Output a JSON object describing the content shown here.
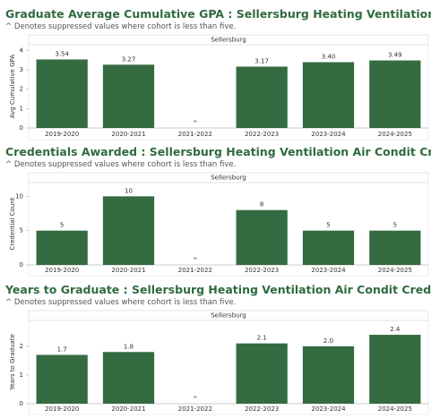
{
  "chart_data": [
    {
      "type": "bar",
      "title": "Graduate Average Cumulative GPA : Sellersburg Heating Ventilation Air Condit Credentials",
      "subtitle": "^ Denotes suppressed values where cohort is less than five.",
      "panel": "Sellersburg",
      "ylabel": "Avg Cumulative GPA",
      "categories": [
        "2019-2020",
        "2020-2021",
        "2021-2022",
        "2022-2023",
        "2023-2024",
        "2024-2025"
      ],
      "values": [
        3.54,
        3.27,
        null,
        3.17,
        3.4,
        3.49
      ],
      "value_labels": [
        "3.54",
        "3.27",
        "^",
        "3.17",
        "3.40",
        "3.49"
      ],
      "color": "#356b41",
      "ylim": [
        0,
        4.3
      ],
      "yticks": [
        0,
        1,
        2,
        3,
        4
      ]
    },
    {
      "type": "bar",
      "title": "Credentials Awarded : Sellersburg Heating Ventilation Air Condit Credentials",
      "subtitle": "^ Denotes suppressed values where cohort is less than five.",
      "panel": "Sellersburg",
      "ylabel": "Credential Count",
      "categories": [
        "2019-2020",
        "2020-2021",
        "2021-2022",
        "2022-2023",
        "2023-2024",
        "2024-2025"
      ],
      "values": [
        5,
        10,
        null,
        8,
        5,
        5
      ],
      "value_labels": [
        "5",
        "10",
        "^",
        "8",
        "5",
        "5"
      ],
      "color": "#356b41",
      "ylim": [
        0,
        12
      ],
      "yticks": [
        0,
        5,
        10
      ]
    },
    {
      "type": "bar",
      "title": "Years to Graduate : Sellersburg Heating Ventilation Air Condit Credentials",
      "subtitle": "^ Denotes suppressed values where cohort is less than five.",
      "panel": "Sellersburg",
      "ylabel": "Years to Graduate",
      "categories": [
        "2019-2020",
        "2020-2021",
        "2021-2022",
        "2022-2023",
        "2023-2024",
        "2024-2025"
      ],
      "values": [
        1.7,
        1.8,
        null,
        2.1,
        2.0,
        2.4
      ],
      "value_labels": [
        "1.7",
        "1.8",
        "^",
        "2.1",
        "2.0",
        "2.4"
      ],
      "color": "#356b41",
      "ylim": [
        0,
        2.9
      ],
      "yticks": [
        0,
        1,
        2
      ]
    }
  ]
}
